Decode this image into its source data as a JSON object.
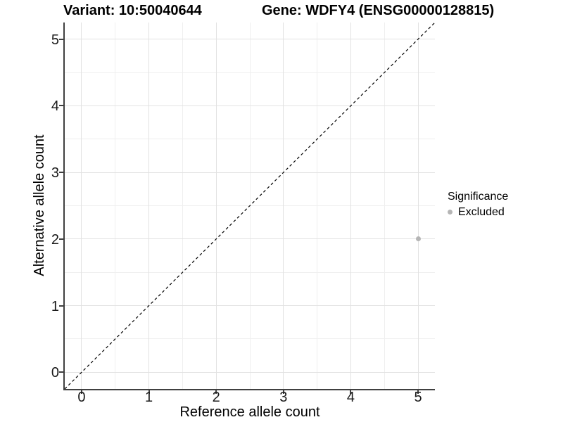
{
  "chart_data": {
    "type": "scatter",
    "title_left": "Variant: 10:50040644",
    "title_right": "Gene: WDFY4 (ENSG00000128815)",
    "xlabel": "Reference allele count",
    "ylabel": "Alternative allele count",
    "xlim": [
      -0.25,
      5.25
    ],
    "ylim": [
      -0.25,
      5.25
    ],
    "x_ticks": [
      0,
      1,
      2,
      3,
      4,
      5
    ],
    "y_ticks": [
      0,
      1,
      2,
      3,
      4,
      5
    ],
    "grid": {
      "major": true,
      "minor": true,
      "minor_interval": 0.5,
      "legend_position": "right"
    },
    "diagonal_line": {
      "style": "dashed",
      "equation": "y = x",
      "from": [
        -0.25,
        -0.25
      ],
      "to": [
        5.25,
        5.25
      ],
      "color": "#000000"
    },
    "series": [
      {
        "name": "Excluded",
        "color": "#b5b5b5",
        "points": [
          [
            5,
            2
          ]
        ]
      }
    ],
    "legend": {
      "title": "Significance",
      "entries": [
        {
          "label": "Excluded",
          "color": "#b5b5b5"
        }
      ]
    }
  },
  "colors": {
    "background": "#ffffff",
    "axis_line": "#404040",
    "tick_text": "#1a1a1a",
    "grid_major": "#e2e2e2",
    "grid_minor": "#efefef",
    "point": "#b5b5b5"
  }
}
